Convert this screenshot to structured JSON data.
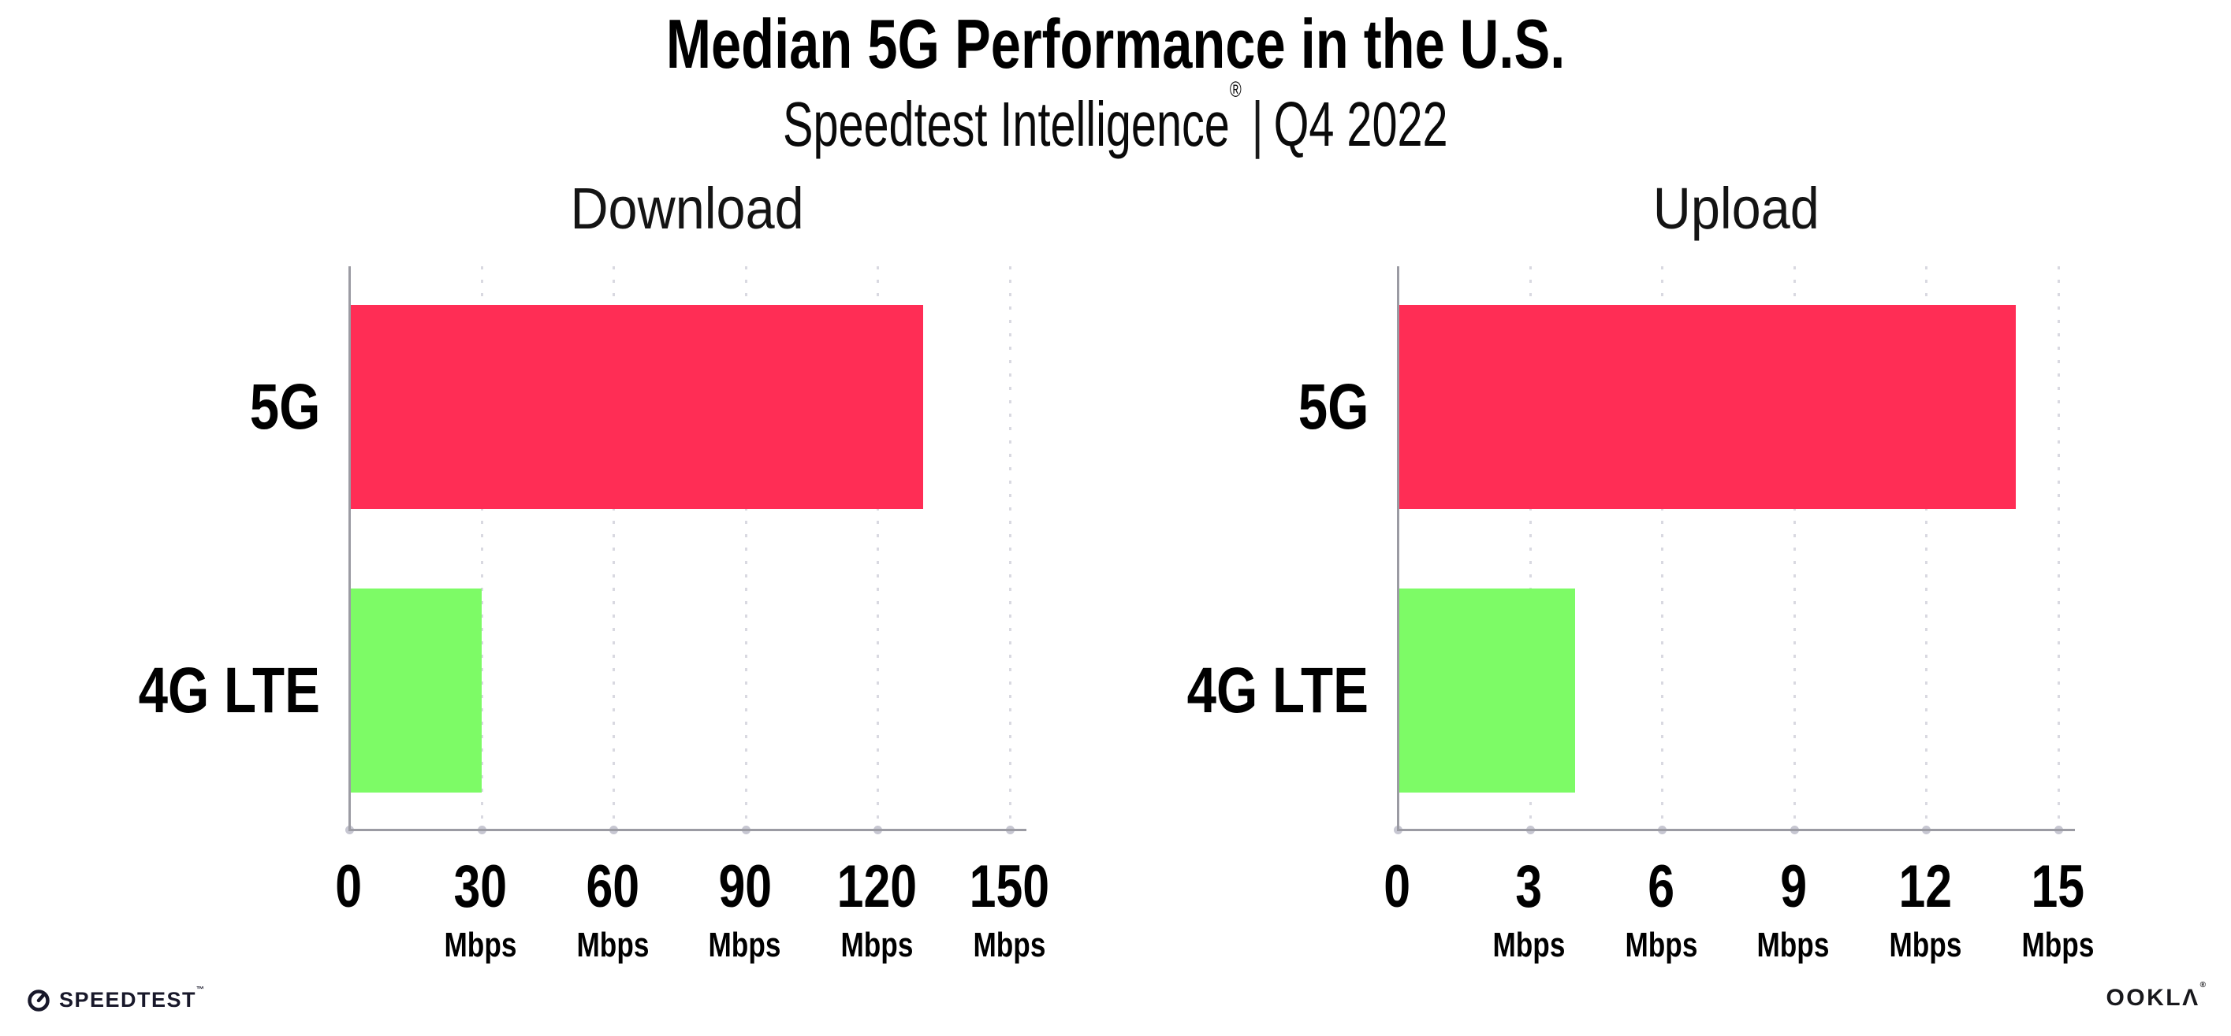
{
  "header": {
    "title": "Median 5G Performance in the U.S.",
    "subtitle": {
      "brand": "Speedtest Intelligence",
      "registered": "®",
      "separator": "|",
      "period": "Q4 2022"
    }
  },
  "chart_data": [
    {
      "type": "bar",
      "orientation": "horizontal",
      "title": "Download",
      "categories": [
        "5G",
        "4G LTE"
      ],
      "values": [
        130,
        29.7
      ],
      "value_unit": "Mbps",
      "xlim": [
        0,
        150
      ],
      "xticks": [
        0,
        30,
        60,
        90,
        120,
        150
      ],
      "xtick_unit": "Mbps",
      "grid": "dotted-vertical",
      "legend": "none",
      "bar_colors": [
        "#ff2d55",
        "#7dfb66"
      ]
    },
    {
      "type": "bar",
      "orientation": "horizontal",
      "title": "Upload",
      "categories": [
        "5G",
        "4G LTE"
      ],
      "values": [
        14,
        4
      ],
      "value_unit": "Mbps",
      "xlim": [
        0,
        15
      ],
      "xticks": [
        0,
        3,
        6,
        9,
        12,
        15
      ],
      "xtick_unit": "Mbps",
      "grid": "dotted-vertical",
      "legend": "none",
      "bar_colors": [
        "#ff2d55",
        "#7dfb66"
      ]
    }
  ],
  "footer": {
    "speedtest": {
      "label": "SPEEDTEST",
      "mark": "™"
    },
    "ookla": {
      "label": "OOKLΛ",
      "mark": "®"
    }
  },
  "colors": {
    "bar_5g": "#ff2d55",
    "bar_4g_lte": "#7dfb66",
    "axis_line": "#9b9ba3",
    "gridline": "#d9d9e1",
    "tick_dot": "#c7c7d2",
    "title_text": "#000000",
    "chart_title_text": "#141414",
    "background": "#ffffff"
  }
}
